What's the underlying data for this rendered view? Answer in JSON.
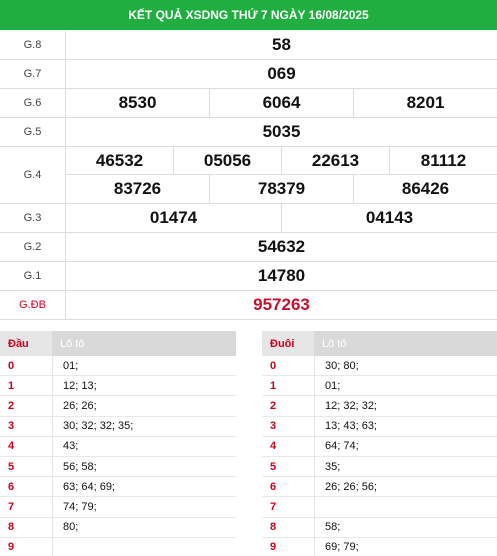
{
  "header": {
    "title": "KẾT QUẢ XSDNG THỨ 7 NGÀY 16/08/2025"
  },
  "prizes": {
    "g8": {
      "label": "G.8",
      "values": [
        "58"
      ]
    },
    "g7": {
      "label": "G.7",
      "values": [
        "069"
      ]
    },
    "g6": {
      "label": "G.6",
      "values": [
        "8530",
        "6064",
        "8201"
      ]
    },
    "g5": {
      "label": "G.5",
      "values": [
        "5035"
      ]
    },
    "g4": {
      "label": "G.4",
      "row1": [
        "46532",
        "05056",
        "22613",
        "81112"
      ],
      "row2": [
        "83726",
        "78379",
        "86426"
      ]
    },
    "g3": {
      "label": "G.3",
      "values": [
        "01474",
        "04143"
      ]
    },
    "g2": {
      "label": "G.2",
      "values": [
        "54632"
      ]
    },
    "g1": {
      "label": "G.1",
      "values": [
        "14780"
      ]
    },
    "gdb": {
      "label": "G.ĐB",
      "values": [
        "957263"
      ]
    }
  },
  "dau_table": {
    "col1": "Đầu",
    "col2": "Lô tô",
    "rows": [
      {
        "k": "0",
        "v": "01;"
      },
      {
        "k": "1",
        "v": "12; 13;"
      },
      {
        "k": "2",
        "v": "26; 26;"
      },
      {
        "k": "3",
        "v": "30; 32; 32; 35;"
      },
      {
        "k": "4",
        "v": "43;"
      },
      {
        "k": "5",
        "v": "56; 58;"
      },
      {
        "k": "6",
        "v": "63; 64; 69;"
      },
      {
        "k": "7",
        "v": "74; 79;"
      },
      {
        "k": "8",
        "v": "80;"
      },
      {
        "k": "9",
        "v": ""
      }
    ]
  },
  "duoi_table": {
    "col1": "Đuôi",
    "col2": "Lô tô",
    "rows": [
      {
        "k": "0",
        "v": "30; 80;"
      },
      {
        "k": "1",
        "v": "01;"
      },
      {
        "k": "2",
        "v": "12; 32; 32;"
      },
      {
        "k": "3",
        "v": "13; 43; 63;"
      },
      {
        "k": "4",
        "v": "64; 74;"
      },
      {
        "k": "5",
        "v": "35;"
      },
      {
        "k": "6",
        "v": "26; 26; 56;"
      },
      {
        "k": "7",
        "v": ""
      },
      {
        "k": "8",
        "v": "58;"
      },
      {
        "k": "9",
        "v": "69; 79;"
      }
    ]
  },
  "colors": {
    "header_bg": "#1fae3f",
    "accent_red": "#d0021b"
  }
}
